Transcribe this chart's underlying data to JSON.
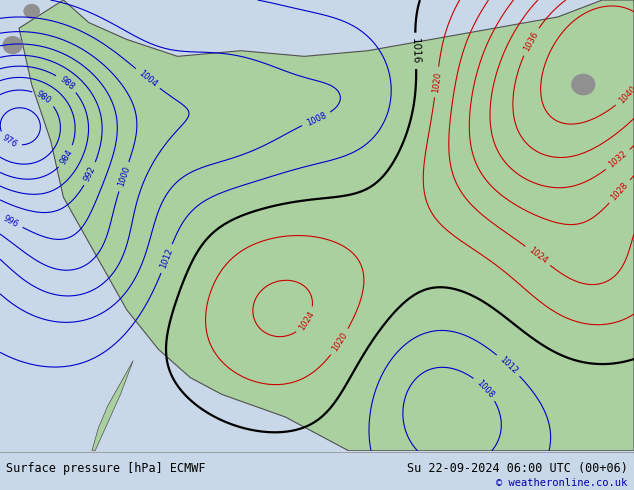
{
  "title_left": "Surface pressure [hPa] ECMWF",
  "title_right": "Su 22-09-2024 06:00 UTC (00+06)",
  "copyright": "© weatheronline.co.uk",
  "bg_color": "#c8d8e8",
  "land_color": "#aad0a0",
  "coast_color": "#505050",
  "blue_contour_color": "#0000cc",
  "red_contour_color": "#cc0000",
  "black_contour_color": "#000000",
  "bottom_bar_color": "#c8c8c8",
  "figsize": [
    6.34,
    4.9
  ],
  "dpi": 100
}
